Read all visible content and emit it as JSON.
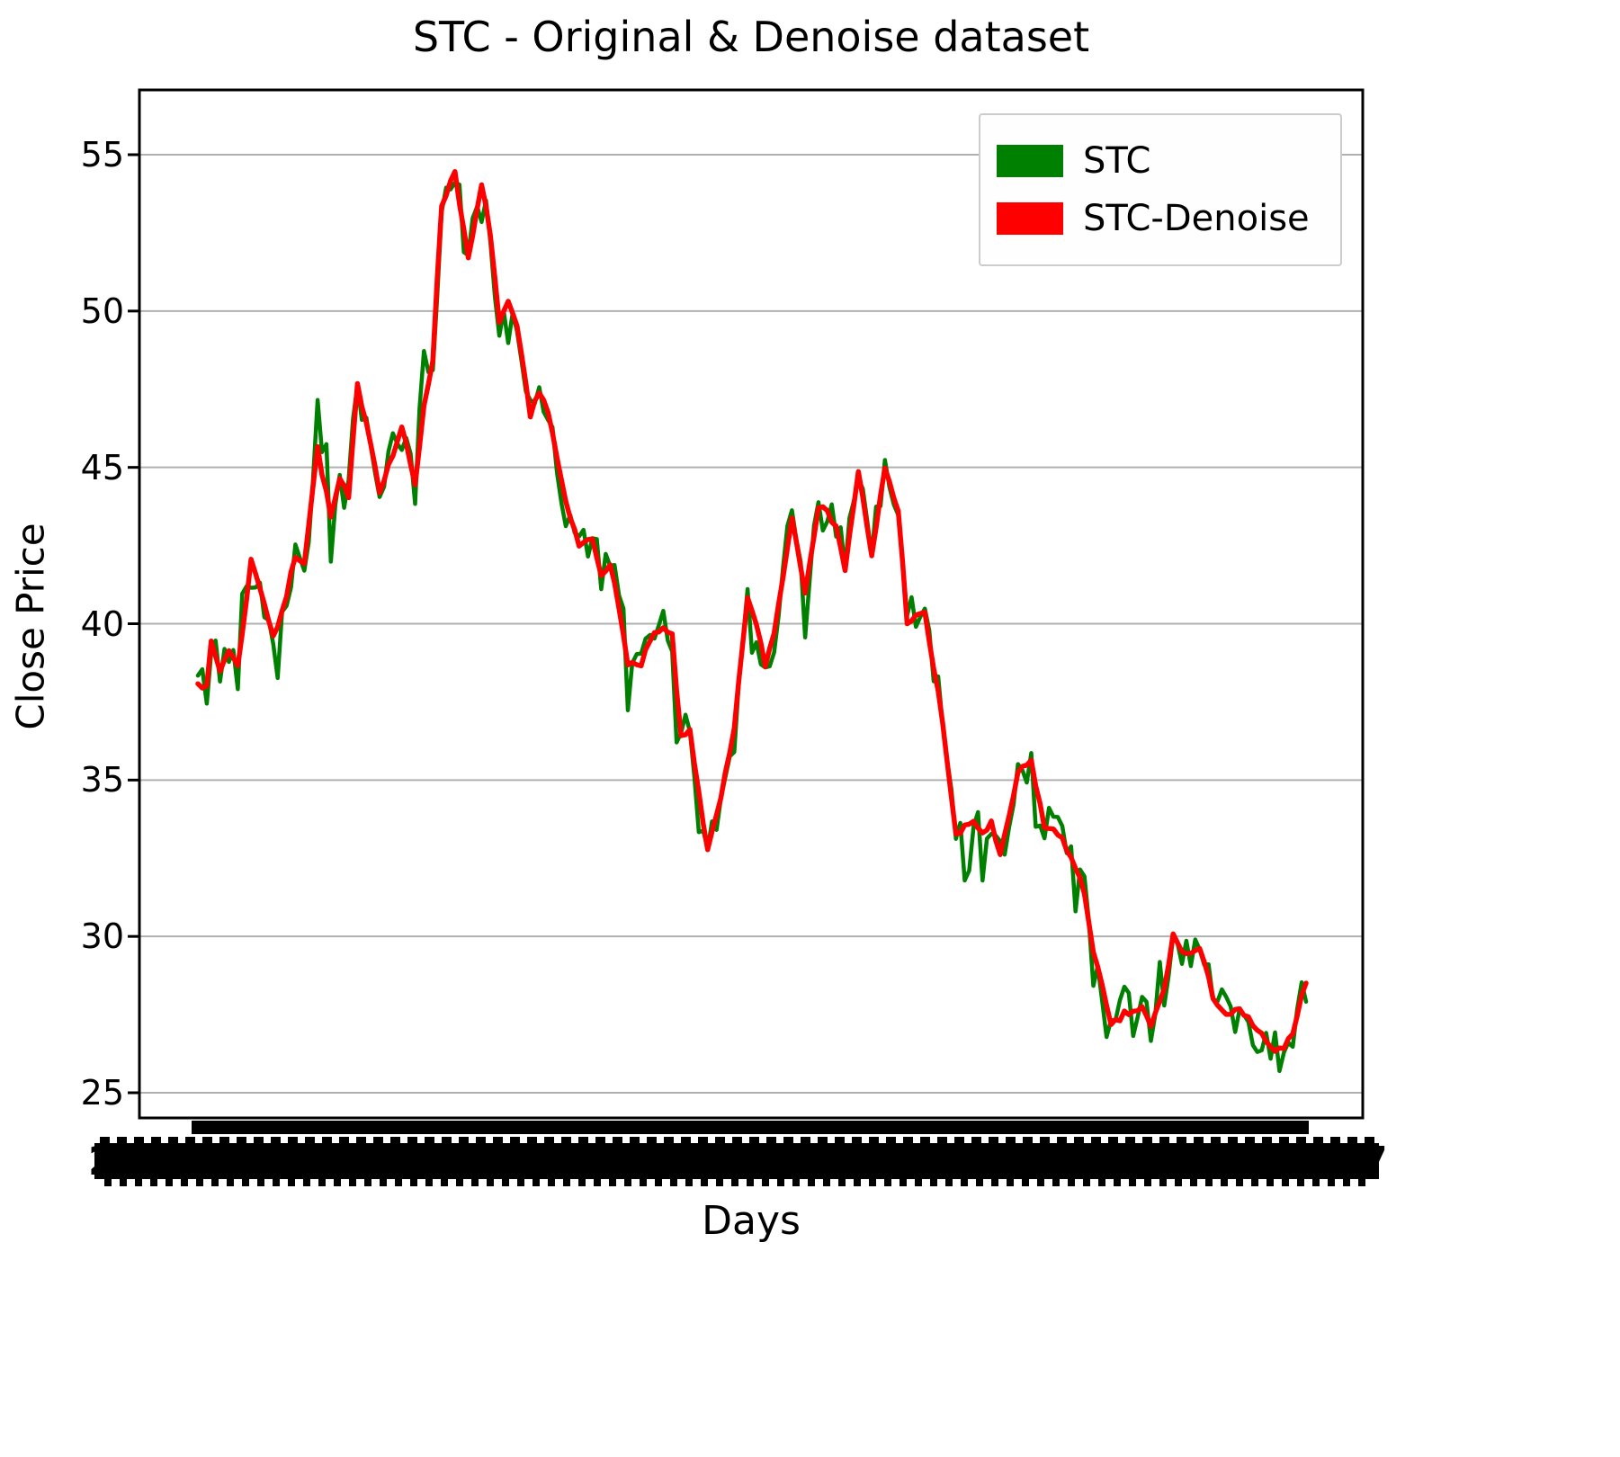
{
  "figure": {
    "title": "STC - Original & Denoise dataset"
  },
  "chart_data": {
    "type": "line",
    "title": "STC - Original & Denoise dataset",
    "xlabel": "Days",
    "ylabel": "Close Price",
    "ylim": [
      24.2,
      57.2
    ],
    "xlim_days": [
      0,
      250
    ],
    "y_ticks": [
      25,
      30,
      35,
      40,
      45,
      50,
      55
    ],
    "x_tick_labels": "illegible - dense overlapping date labels rendered as a solid black band",
    "x_tick_visible_fragments": {
      "left_char": "2",
      "right_char": "7"
    },
    "grid": "horizontal",
    "grid_color": "#b0b0b0",
    "legend_position": "upper right",
    "series": [
      {
        "name": "STC",
        "color": "#008000",
        "derived_from": "STC-Denoise keypoints",
        "noise_amplitude": 0.7,
        "noise_spike_probability": 0.18,
        "noise_spike_factor": 2.6,
        "noise_seed": 42
      },
      {
        "name": "STC-Denoise",
        "color": "#ff0000",
        "jitter_amplitude": 0.12,
        "jitter_seed": 7,
        "keypoints": [
          [
            0,
            38.2
          ],
          [
            2,
            37.9
          ],
          [
            3,
            39.4
          ],
          [
            5,
            38.5
          ],
          [
            7,
            39.2
          ],
          [
            9,
            38.6
          ],
          [
            12,
            42.0
          ],
          [
            14,
            41.2
          ],
          [
            17,
            39.6
          ],
          [
            19,
            40.3
          ],
          [
            22,
            42.2
          ],
          [
            24,
            42.0
          ],
          [
            27,
            45.6
          ],
          [
            30,
            43.4
          ],
          [
            32,
            44.6
          ],
          [
            34,
            44.0
          ],
          [
            36,
            47.6
          ],
          [
            38,
            46.5
          ],
          [
            41,
            44.3
          ],
          [
            44,
            45.4
          ],
          [
            46,
            46.3
          ],
          [
            49,
            44.4
          ],
          [
            51,
            47.0
          ],
          [
            53,
            48.5
          ],
          [
            55,
            53.4
          ],
          [
            58,
            54.5
          ],
          [
            61,
            51.6
          ],
          [
            64,
            54.0
          ],
          [
            66,
            52.5
          ],
          [
            68,
            49.6
          ],
          [
            70,
            50.2
          ],
          [
            72,
            49.5
          ],
          [
            75,
            46.6
          ],
          [
            77,
            47.5
          ],
          [
            79,
            46.8
          ],
          [
            83,
            43.8
          ],
          [
            86,
            42.5
          ],
          [
            89,
            42.7
          ],
          [
            91,
            41.6
          ],
          [
            93,
            42.0
          ],
          [
            97,
            38.8
          ],
          [
            100,
            38.6
          ],
          [
            102,
            39.5
          ],
          [
            105,
            39.8
          ],
          [
            107,
            39.6
          ],
          [
            109,
            36.3
          ],
          [
            111,
            36.6
          ],
          [
            115,
            32.7
          ],
          [
            118,
            34.4
          ],
          [
            121,
            36.6
          ],
          [
            124,
            40.9
          ],
          [
            126,
            39.9
          ],
          [
            128,
            38.7
          ],
          [
            130,
            39.7
          ],
          [
            134,
            43.4
          ],
          [
            137,
            41.1
          ],
          [
            140,
            43.8
          ],
          [
            142,
            43.5
          ],
          [
            144,
            43.2
          ],
          [
            146,
            41.7
          ],
          [
            149,
            44.9
          ],
          [
            152,
            42.1
          ],
          [
            155,
            45.0
          ],
          [
            158,
            43.6
          ],
          [
            160,
            40.1
          ],
          [
            164,
            40.3
          ],
          [
            168,
            36.9
          ],
          [
            171,
            33.2
          ],
          [
            175,
            33.7
          ],
          [
            177,
            33.3
          ],
          [
            179,
            33.6
          ],
          [
            181,
            32.5
          ],
          [
            185,
            35.2
          ],
          [
            188,
            35.6
          ],
          [
            191,
            33.5
          ],
          [
            195,
            33.2
          ],
          [
            200,
            31.4
          ],
          [
            202,
            29.6
          ],
          [
            206,
            27.1
          ],
          [
            209,
            27.5
          ],
          [
            213,
            27.7
          ],
          [
            215,
            27.1
          ],
          [
            218,
            28.3
          ],
          [
            220,
            30.0
          ],
          [
            223,
            29.4
          ],
          [
            226,
            29.6
          ],
          [
            229,
            28.1
          ],
          [
            232,
            27.5
          ],
          [
            235,
            27.6
          ],
          [
            238,
            27.2
          ],
          [
            242,
            26.4
          ],
          [
            245,
            26.3
          ],
          [
            247,
            27.0
          ],
          [
            250,
            28.6
          ]
        ]
      }
    ]
  }
}
